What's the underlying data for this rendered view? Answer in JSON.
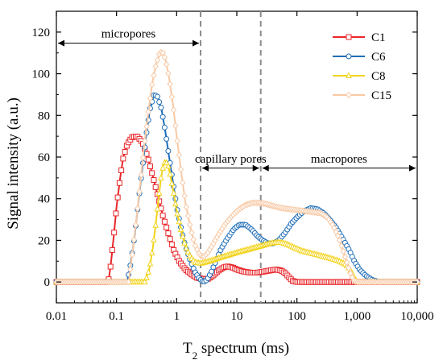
{
  "chart_data": {
    "type": "line",
    "xlabel_main": "T",
    "xlabel_sub": "2",
    "xlabel_rest": " spectrum (ms)",
    "ylabel": "Signal intensity (a.u.)",
    "xscale": "log",
    "xlim": [
      0.01,
      10000
    ],
    "ylim": [
      -10,
      130
    ],
    "x_ticks": [
      {
        "value": 0.01,
        "label": "0.01"
      },
      {
        "value": 0.1,
        "label": "0.1"
      },
      {
        "value": 1,
        "label": "1"
      },
      {
        "value": 10,
        "label": "10"
      },
      {
        "value": 100,
        "label": "100"
      },
      {
        "value": 1000,
        "label": "1,000"
      },
      {
        "value": 10000,
        "label": "10,000"
      }
    ],
    "y_ticks": [
      {
        "value": 0,
        "label": "0"
      },
      {
        "value": 20,
        "label": "20"
      },
      {
        "value": 40,
        "label": "40"
      },
      {
        "value": 60,
        "label": "60"
      },
      {
        "value": 80,
        "label": "80"
      },
      {
        "value": 100,
        "label": "100"
      },
      {
        "value": 120,
        "label": "120"
      }
    ],
    "grid": false,
    "legend_position": "top-right",
    "dividers": [
      2.5,
      25
    ],
    "regions": [
      {
        "label": "micropores",
        "from": 0.01,
        "to": 2.5,
        "arrow_y": 117
      },
      {
        "label": "capillary pores",
        "from": 2.5,
        "to": 25,
        "arrow_y": 57
      },
      {
        "label": "macropores",
        "from": 25,
        "to": 10000,
        "arrow_y": 57
      }
    ],
    "series": [
      {
        "name": "C1",
        "color": "#e8262a",
        "marker": "square",
        "points": [
          [
            0.01,
            0
          ],
          [
            0.073,
            0
          ],
          [
            0.08,
            8
          ],
          [
            0.09,
            22
          ],
          [
            0.1,
            36
          ],
          [
            0.115,
            50
          ],
          [
            0.13,
            60
          ],
          [
            0.15,
            66
          ],
          [
            0.18,
            69.5
          ],
          [
            0.22,
            70
          ],
          [
            0.27,
            67
          ],
          [
            0.33,
            60
          ],
          [
            0.4,
            51
          ],
          [
            0.5,
            40
          ],
          [
            0.6,
            31
          ],
          [
            0.75,
            22
          ],
          [
            0.9,
            15
          ],
          [
            1.1,
            10
          ],
          [
            1.4,
            6
          ],
          [
            1.8,
            3.5
          ],
          [
            2.2,
            2
          ],
          [
            2.7,
            1.5
          ],
          [
            3.3,
            1.5
          ],
          [
            4,
            3
          ],
          [
            5,
            5.5
          ],
          [
            6,
            7
          ],
          [
            7,
            7.5
          ],
          [
            8.5,
            7
          ],
          [
            10,
            6
          ],
          [
            13,
            5
          ],
          [
            17,
            4.5
          ],
          [
            22,
            4.5
          ],
          [
            28,
            5
          ],
          [
            35,
            5.5
          ],
          [
            45,
            6
          ],
          [
            55,
            5.5
          ],
          [
            65,
            4
          ],
          [
            75,
            2
          ],
          [
            85,
            0.5
          ],
          [
            100,
            0
          ],
          [
            10000,
            0
          ]
        ]
      },
      {
        "name": "C6",
        "color": "#1f6eb8",
        "marker": "circle",
        "points": [
          [
            0.01,
            0
          ],
          [
            0.15,
            0
          ],
          [
            0.17,
            8
          ],
          [
            0.2,
            22
          ],
          [
            0.23,
            38
          ],
          [
            0.27,
            55
          ],
          [
            0.31,
            70
          ],
          [
            0.36,
            83
          ],
          [
            0.42,
            90
          ],
          [
            0.48,
            89
          ],
          [
            0.56,
            83
          ],
          [
            0.65,
            72
          ],
          [
            0.75,
            60
          ],
          [
            0.88,
            47
          ],
          [
            1,
            36
          ],
          [
            1.2,
            25
          ],
          [
            1.4,
            17
          ],
          [
            1.7,
            10
          ],
          [
            2,
            5
          ],
          [
            2.4,
            1.5
          ],
          [
            2.8,
            0
          ],
          [
            3.2,
            1
          ],
          [
            3.8,
            5
          ],
          [
            4.5,
            10
          ],
          [
            5.5,
            16
          ],
          [
            7,
            21
          ],
          [
            9,
            25.5
          ],
          [
            11,
            27.5
          ],
          [
            14,
            27.5
          ],
          [
            18,
            25
          ],
          [
            22,
            22
          ],
          [
            27,
            20
          ],
          [
            33,
            18.5
          ],
          [
            40,
            18.5
          ],
          [
            50,
            20
          ],
          [
            65,
            24
          ],
          [
            80,
            28
          ],
          [
            100,
            31
          ],
          [
            130,
            34
          ],
          [
            170,
            35.5
          ],
          [
            220,
            35
          ],
          [
            280,
            33
          ],
          [
            350,
            30
          ],
          [
            450,
            26
          ],
          [
            600,
            20
          ],
          [
            750,
            15
          ],
          [
            900,
            10
          ],
          [
            1100,
            6
          ],
          [
            1400,
            3
          ],
          [
            1800,
            1
          ],
          [
            2300,
            0
          ],
          [
            10000,
            0
          ]
        ]
      },
      {
        "name": "C8",
        "color": "#f2d31b",
        "marker": "triangle",
        "points": [
          [
            0.01,
            0
          ],
          [
            0.3,
            0
          ],
          [
            0.35,
            6
          ],
          [
            0.4,
            16
          ],
          [
            0.45,
            28
          ],
          [
            0.5,
            40
          ],
          [
            0.55,
            50
          ],
          [
            0.6,
            56
          ],
          [
            0.65,
            58
          ],
          [
            0.72,
            56
          ],
          [
            0.8,
            50
          ],
          [
            0.9,
            42
          ],
          [
            1,
            34
          ],
          [
            1.2,
            24
          ],
          [
            1.4,
            17
          ],
          [
            1.7,
            12
          ],
          [
            2,
            9.5
          ],
          [
            2.5,
            9
          ],
          [
            3,
            9.5
          ],
          [
            4,
            10.5
          ],
          [
            5,
            11.5
          ],
          [
            6.5,
            12.5
          ],
          [
            8.5,
            13.5
          ],
          [
            11,
            14.5
          ],
          [
            15,
            15.5
          ],
          [
            20,
            16.5
          ],
          [
            27,
            17.5
          ],
          [
            35,
            18.5
          ],
          [
            45,
            19
          ],
          [
            55,
            19
          ],
          [
            70,
            18
          ],
          [
            90,
            16.5
          ],
          [
            120,
            15
          ],
          [
            160,
            14
          ],
          [
            220,
            13
          ],
          [
            300,
            12
          ],
          [
            400,
            11
          ],
          [
            500,
            10
          ],
          [
            600,
            9
          ],
          [
            700,
            7.5
          ],
          [
            800,
            5
          ],
          [
            900,
            2
          ],
          [
            1000,
            0
          ],
          [
            10000,
            0
          ]
        ]
      },
      {
        "name": "C15",
        "color": "#f8c9a5",
        "marker": "diamond",
        "points": [
          [
            0.01,
            0
          ],
          [
            0.16,
            0
          ],
          [
            0.18,
            12
          ],
          [
            0.21,
            28
          ],
          [
            0.25,
            48
          ],
          [
            0.29,
            66
          ],
          [
            0.34,
            82
          ],
          [
            0.39,
            95
          ],
          [
            0.45,
            104
          ],
          [
            0.52,
            110
          ],
          [
            0.58,
            110.5
          ],
          [
            0.65,
            107
          ],
          [
            0.75,
            98
          ],
          [
            0.88,
            84
          ],
          [
            1,
            70
          ],
          [
            1.2,
            52
          ],
          [
            1.4,
            38
          ],
          [
            1.7,
            26
          ],
          [
            2,
            18
          ],
          [
            2.4,
            13
          ],
          [
            2.8,
            12
          ],
          [
            3.3,
            14
          ],
          [
            4,
            18
          ],
          [
            5,
            23
          ],
          [
            6.5,
            28
          ],
          [
            8.5,
            32
          ],
          [
            11,
            35
          ],
          [
            14,
            37
          ],
          [
            18,
            38
          ],
          [
            23,
            38
          ],
          [
            30,
            37.5
          ],
          [
            40,
            36.5
          ],
          [
            55,
            35.5
          ],
          [
            75,
            35
          ],
          [
            100,
            34.5
          ],
          [
            140,
            34
          ],
          [
            190,
            33.5
          ],
          [
            250,
            33
          ],
          [
            320,
            31
          ],
          [
            400,
            27
          ],
          [
            500,
            21
          ],
          [
            600,
            14
          ],
          [
            700,
            8
          ],
          [
            800,
            3
          ],
          [
            900,
            0.5
          ],
          [
            1000,
            0
          ],
          [
            10000,
            0
          ]
        ]
      }
    ]
  }
}
